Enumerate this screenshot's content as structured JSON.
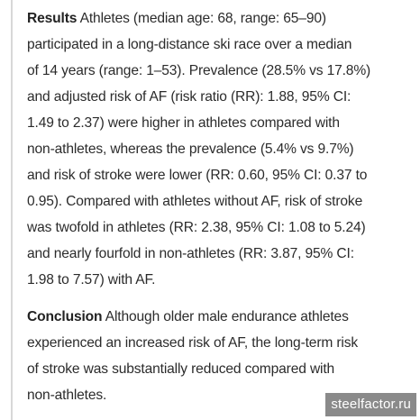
{
  "results": {
    "heading": "Results",
    "lines": [
      "Athletes (median age: 68, range: 65–90)",
      "participated in a long-distance ski race over a median",
      "of 14 years (range: 1–53). Prevalence (28.5% vs 17.8%)",
      "and adjusted risk of AF (risk ratio (RR): 1.88, 95% CI:",
      "1.49 to 2.37) were higher in athletes compared with",
      "non-athletes, whereas the prevalence (5.4% vs 9.7%)",
      "and risk of stroke were lower (RR: 0.60, 95% CI: 0.37 to",
      "0.95). Compared with athletes without AF, risk of stroke",
      "was twofold in athletes (RR: 2.38, 95% CI: 1.08 to 5.24)",
      "and nearly fourfold in non-athletes (RR: 3.87, 95% CI:",
      "1.98 to 7.57) with AF."
    ]
  },
  "conclusion": {
    "heading": "Conclusion",
    "lines": [
      "Although older male endurance athletes",
      "experienced an increased risk of AF, the long-term risk",
      "of stroke was substantially reduced compared with",
      "non-athletes."
    ]
  },
  "watermark": "steelfactor.ru"
}
